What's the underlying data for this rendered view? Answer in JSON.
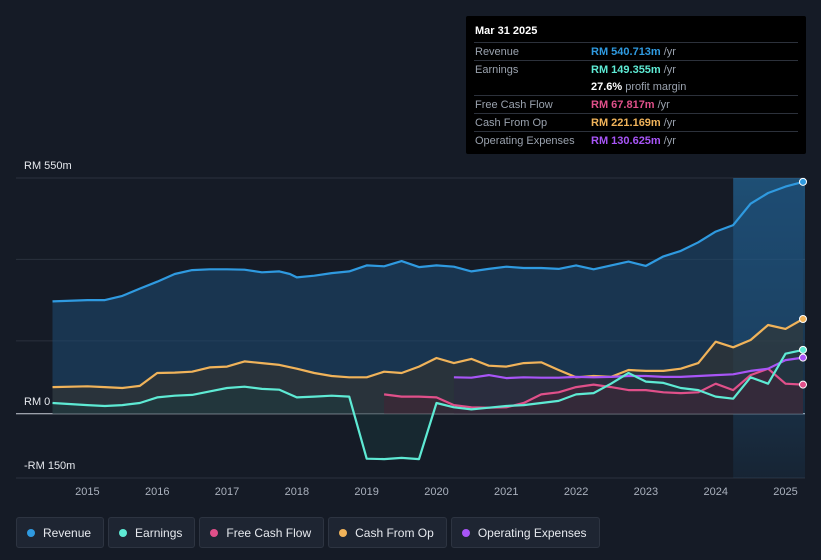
{
  "tooltip": {
    "date": "Mar 31 2025",
    "rows": [
      {
        "label": "Revenue",
        "value": "RM 540.713m",
        "unit": "/yr",
        "color": "#2f9ae0"
      },
      {
        "label": "Earnings",
        "value": "RM 149.355m",
        "unit": "/yr",
        "color": "#5eead4"
      },
      {
        "label": "",
        "value": "27.6%",
        "unit": "profit margin",
        "color": "#ffffff"
      },
      {
        "label": "Free Cash Flow",
        "value": "RM 67.817m",
        "unit": "/yr",
        "color": "#e0508a"
      },
      {
        "label": "Cash From Op",
        "value": "RM 221.169m",
        "unit": "/yr",
        "color": "#f0b35a"
      },
      {
        "label": "Operating Expenses",
        "value": "RM 130.625m",
        "unit": "/yr",
        "color": "#a855f7"
      }
    ]
  },
  "legend": [
    {
      "label": "Revenue",
      "color": "#2f9ae0"
    },
    {
      "label": "Earnings",
      "color": "#5eead4"
    },
    {
      "label": "Free Cash Flow",
      "color": "#e0508a"
    },
    {
      "label": "Cash From Op",
      "color": "#f0b35a"
    },
    {
      "label": "Operating Expenses",
      "color": "#a855f7"
    }
  ],
  "chart_data": {
    "type": "area",
    "title": "",
    "xlabel": "",
    "ylabel": "",
    "y_labels": [
      "RM 550m",
      "RM 0",
      "-RM 150m"
    ],
    "ylim": [
      -150,
      550
    ],
    "xlim": [
      2014.45,
      2025.25
    ],
    "x_ticks": [
      "2015",
      "2016",
      "2017",
      "2018",
      "2019",
      "2020",
      "2021",
      "2022",
      "2023",
      "2024",
      "2025"
    ],
    "forecast_start": 2024.25,
    "series": [
      {
        "name": "Revenue",
        "color": "#2f9ae0",
        "points": [
          [
            2014.5,
            262
          ],
          [
            2015,
            265
          ],
          [
            2015.25,
            265
          ],
          [
            2015.5,
            275
          ],
          [
            2015.75,
            292
          ],
          [
            2016,
            308
          ],
          [
            2016.25,
            326
          ],
          [
            2016.5,
            335
          ],
          [
            2016.75,
            337
          ],
          [
            2017,
            337
          ],
          [
            2017.25,
            336
          ],
          [
            2017.5,
            330
          ],
          [
            2017.75,
            332
          ],
          [
            2017.9,
            326
          ],
          [
            2018,
            318
          ],
          [
            2018.25,
            322
          ],
          [
            2018.5,
            328
          ],
          [
            2018.75,
            332
          ],
          [
            2019,
            346
          ],
          [
            2019.25,
            344
          ],
          [
            2019.5,
            356
          ],
          [
            2019.75,
            342
          ],
          [
            2020,
            346
          ],
          [
            2020.25,
            343
          ],
          [
            2020.5,
            332
          ],
          [
            2020.75,
            338
          ],
          [
            2021,
            343
          ],
          [
            2021.25,
            340
          ],
          [
            2021.5,
            340
          ],
          [
            2021.75,
            338
          ],
          [
            2022,
            346
          ],
          [
            2022.25,
            337
          ],
          [
            2022.5,
            346
          ],
          [
            2022.75,
            355
          ],
          [
            2023,
            345
          ],
          [
            2023.25,
            367
          ],
          [
            2023.5,
            380
          ],
          [
            2023.75,
            400
          ],
          [
            2024,
            425
          ],
          [
            2024.25,
            440
          ],
          [
            2024.5,
            490
          ],
          [
            2024.75,
            515
          ],
          [
            2025,
            530
          ],
          [
            2025.25,
            541
          ]
        ]
      },
      {
        "name": "Earnings",
        "color": "#5eead4",
        "points": [
          [
            2014.5,
            25
          ],
          [
            2015,
            20
          ],
          [
            2015.25,
            18
          ],
          [
            2015.5,
            20
          ],
          [
            2015.75,
            25
          ],
          [
            2016,
            38
          ],
          [
            2016.25,
            42
          ],
          [
            2016.5,
            44
          ],
          [
            2016.75,
            52
          ],
          [
            2017,
            60
          ],
          [
            2017.25,
            63
          ],
          [
            2017.5,
            58
          ],
          [
            2017.75,
            56
          ],
          [
            2018,
            38
          ],
          [
            2018.25,
            40
          ],
          [
            2018.5,
            42
          ],
          [
            2018.75,
            40
          ],
          [
            2019,
            -105
          ],
          [
            2019.25,
            -106
          ],
          [
            2019.5,
            -103
          ],
          [
            2019.75,
            -106
          ],
          [
            2020,
            25
          ],
          [
            2020.25,
            15
          ],
          [
            2020.5,
            10
          ],
          [
            2020.75,
            14
          ],
          [
            2021,
            18
          ],
          [
            2021.25,
            20
          ],
          [
            2021.5,
            25
          ],
          [
            2021.75,
            30
          ],
          [
            2022,
            45
          ],
          [
            2022.25,
            48
          ],
          [
            2022.5,
            70
          ],
          [
            2022.75,
            95
          ],
          [
            2023,
            75
          ],
          [
            2023.25,
            72
          ],
          [
            2023.5,
            60
          ],
          [
            2023.75,
            55
          ],
          [
            2024,
            40
          ],
          [
            2024.25,
            35
          ],
          [
            2024.5,
            85
          ],
          [
            2024.75,
            70
          ],
          [
            2025,
            140
          ],
          [
            2025.25,
            149
          ]
        ]
      },
      {
        "name": "Free Cash Flow",
        "color": "#e0508a",
        "points": [
          [
            2019.25,
            45
          ],
          [
            2019.5,
            40
          ],
          [
            2019.75,
            40
          ],
          [
            2020,
            38
          ],
          [
            2020.25,
            20
          ],
          [
            2020.5,
            15
          ],
          [
            2020.75,
            14
          ],
          [
            2021,
            15
          ],
          [
            2021.25,
            25
          ],
          [
            2021.5,
            45
          ],
          [
            2021.75,
            50
          ],
          [
            2022,
            62
          ],
          [
            2022.25,
            68
          ],
          [
            2022.5,
            62
          ],
          [
            2022.75,
            55
          ],
          [
            2023,
            55
          ],
          [
            2023.25,
            50
          ],
          [
            2023.5,
            48
          ],
          [
            2023.75,
            50
          ],
          [
            2024,
            70
          ],
          [
            2024.25,
            55
          ],
          [
            2024.5,
            90
          ],
          [
            2024.75,
            105
          ],
          [
            2025,
            70
          ],
          [
            2025.25,
            68
          ]
        ]
      },
      {
        "name": "Cash From Op",
        "color": "#f0b35a",
        "points": [
          [
            2014.5,
            62
          ],
          [
            2015,
            64
          ],
          [
            2015.25,
            62
          ],
          [
            2015.5,
            60
          ],
          [
            2015.75,
            65
          ],
          [
            2016,
            95
          ],
          [
            2016.25,
            96
          ],
          [
            2016.5,
            98
          ],
          [
            2016.75,
            108
          ],
          [
            2017,
            110
          ],
          [
            2017.25,
            122
          ],
          [
            2017.5,
            118
          ],
          [
            2017.75,
            114
          ],
          [
            2018,
            105
          ],
          [
            2018.25,
            95
          ],
          [
            2018.5,
            88
          ],
          [
            2018.75,
            85
          ],
          [
            2019,
            85
          ],
          [
            2019.25,
            98
          ],
          [
            2019.5,
            95
          ],
          [
            2019.75,
            110
          ],
          [
            2020,
            130
          ],
          [
            2020.25,
            118
          ],
          [
            2020.5,
            128
          ],
          [
            2020.75,
            112
          ],
          [
            2021,
            110
          ],
          [
            2021.25,
            118
          ],
          [
            2021.5,
            120
          ],
          [
            2021.75,
            102
          ],
          [
            2022,
            85
          ],
          [
            2022.25,
            88
          ],
          [
            2022.5,
            86
          ],
          [
            2022.75,
            102
          ],
          [
            2023,
            100
          ],
          [
            2023.25,
            100
          ],
          [
            2023.5,
            105
          ],
          [
            2023.75,
            118
          ],
          [
            2024,
            168
          ],
          [
            2024.25,
            155
          ],
          [
            2024.5,
            172
          ],
          [
            2024.75,
            207
          ],
          [
            2025,
            198
          ],
          [
            2025.25,
            221
          ]
        ]
      },
      {
        "name": "Operating Expenses",
        "color": "#a855f7",
        "points": [
          [
            2020.25,
            85
          ],
          [
            2020.5,
            84
          ],
          [
            2020.75,
            90
          ],
          [
            2021,
            83
          ],
          [
            2021.25,
            85
          ],
          [
            2021.5,
            84
          ],
          [
            2021.75,
            84
          ],
          [
            2022,
            86
          ],
          [
            2022.25,
            85
          ],
          [
            2022.5,
            86
          ],
          [
            2022.75,
            88
          ],
          [
            2023,
            88
          ],
          [
            2023.25,
            86
          ],
          [
            2023.5,
            86
          ],
          [
            2023.75,
            88
          ],
          [
            2024,
            90
          ],
          [
            2024.25,
            92
          ],
          [
            2024.5,
            100
          ],
          [
            2024.75,
            105
          ],
          [
            2025,
            125
          ],
          [
            2025.25,
            131
          ]
        ]
      }
    ]
  }
}
